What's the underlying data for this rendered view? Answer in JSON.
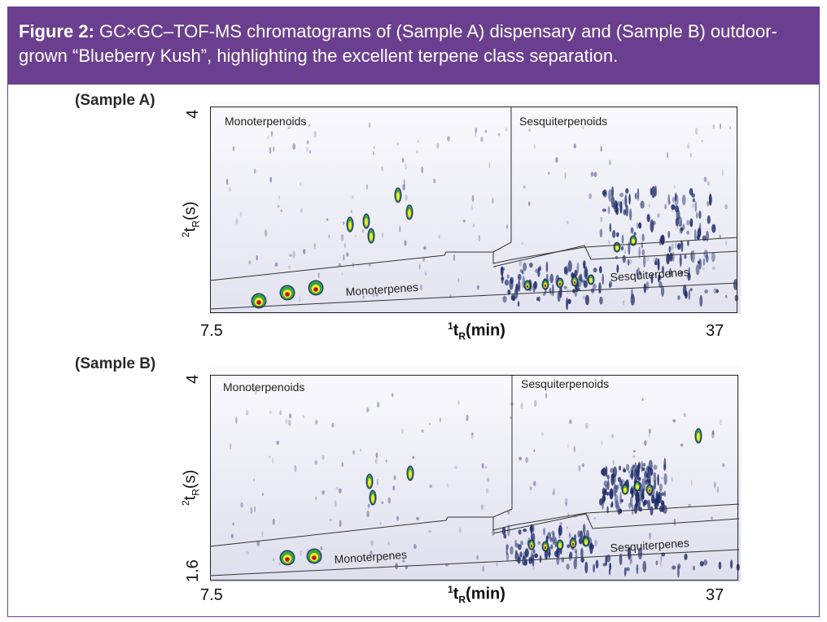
{
  "caption": {
    "prefix": "Figure 2:",
    "text": " GC×GC–TOF-MS chromatograms of (Sample A) dispensary and (Sample B) outdoor-grown “Blueberry Kush”, highlighting the excellent terpene class separation."
  },
  "chart_data": [
    {
      "type": "heatmap",
      "title": "(Sample A)",
      "xlabel": "¹t_R(min)",
      "ylabel": "²t_R(s)",
      "x_ticks": [
        "7.5",
        "37"
      ],
      "y_ticks": [
        "4"
      ],
      "xlim": [
        7.5,
        37
      ],
      "regions": [
        "Monoterpenoids",
        "Sesquiterpenoids",
        "Monoterpenes",
        "Sesquiterpenes"
      ]
    },
    {
      "type": "heatmap",
      "title": "(Sample B)",
      "xlabel": "¹t_R(min)",
      "ylabel": "²t_R(s)",
      "x_ticks": [
        "7.5",
        "37"
      ],
      "y_ticks": [
        "4",
        "1.6"
      ],
      "xlim": [
        7.5,
        37
      ],
      "ylim": [
        1.6,
        4
      ],
      "regions": [
        "Monoterpenoids",
        "Sesquiterpenoids",
        "Monoterpenes",
        "Sesquiterpenes"
      ]
    }
  ],
  "axis": {
    "xlabel_main": "t",
    "xlabel_sup": "1",
    "xlabel_sub": "R",
    "xlabel_unit": "(min)",
    "ylabel_main": "t",
    "ylabel_sup": "2",
    "ylabel_sub": "R",
    "ylabel_unit": "(s)"
  }
}
